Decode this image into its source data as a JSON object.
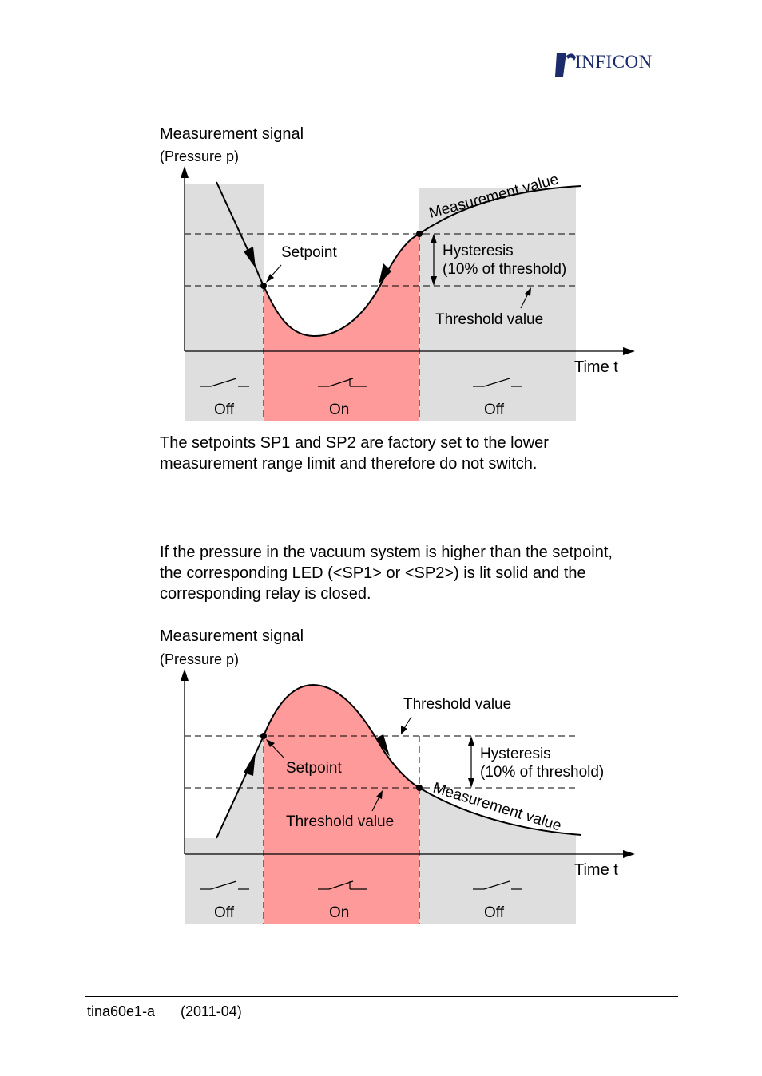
{
  "header": {
    "logo_text": "INFICON",
    "brand_color": "#1b2b6b"
  },
  "diagram_top": {
    "y_title": "Measurement signal",
    "y_subtitle": "(Pressure p)",
    "x_label": "Time t",
    "curve_label": "Measurement value",
    "setpoint_label": "Setpoint",
    "hysteresis_label": "Hysteresis",
    "hysteresis_sub": "(10% of threshold)",
    "threshold_label": "Threshold value",
    "states": [
      "Off",
      "On",
      "Off"
    ]
  },
  "paragraph_1": {
    "line_1": "The setpoints SP1 and SP2 are factory set to the lower",
    "line_2": "measurement range limit and therefore do not switch."
  },
  "paragraph_2": {
    "line_1": "If the pressure in the vacuum system is higher than the setpoint,",
    "line_2": "the corresponding LED (<SP1> or <SP2>) is lit solid and the",
    "line_3": "corresponding relay is closed."
  },
  "diagram_bottom": {
    "y_title": "Measurement signal",
    "y_subtitle": "(Pressure p)",
    "x_label": "Time t",
    "curve_label": "Measurement value",
    "setpoint_label": "Setpoint",
    "hysteresis_label": "Hysteresis",
    "hysteresis_sub": "(10% of threshold)",
    "threshold_label_top": "Threshold value",
    "threshold_label_inner": "Threshold value",
    "states": [
      "Off",
      "On",
      "Off"
    ]
  },
  "colors": {
    "off_fill": "#dedede",
    "on_fill": "#ff9a9a"
  },
  "footer": {
    "doc_id": "tina60e1-a",
    "date": "(2011-04)"
  }
}
